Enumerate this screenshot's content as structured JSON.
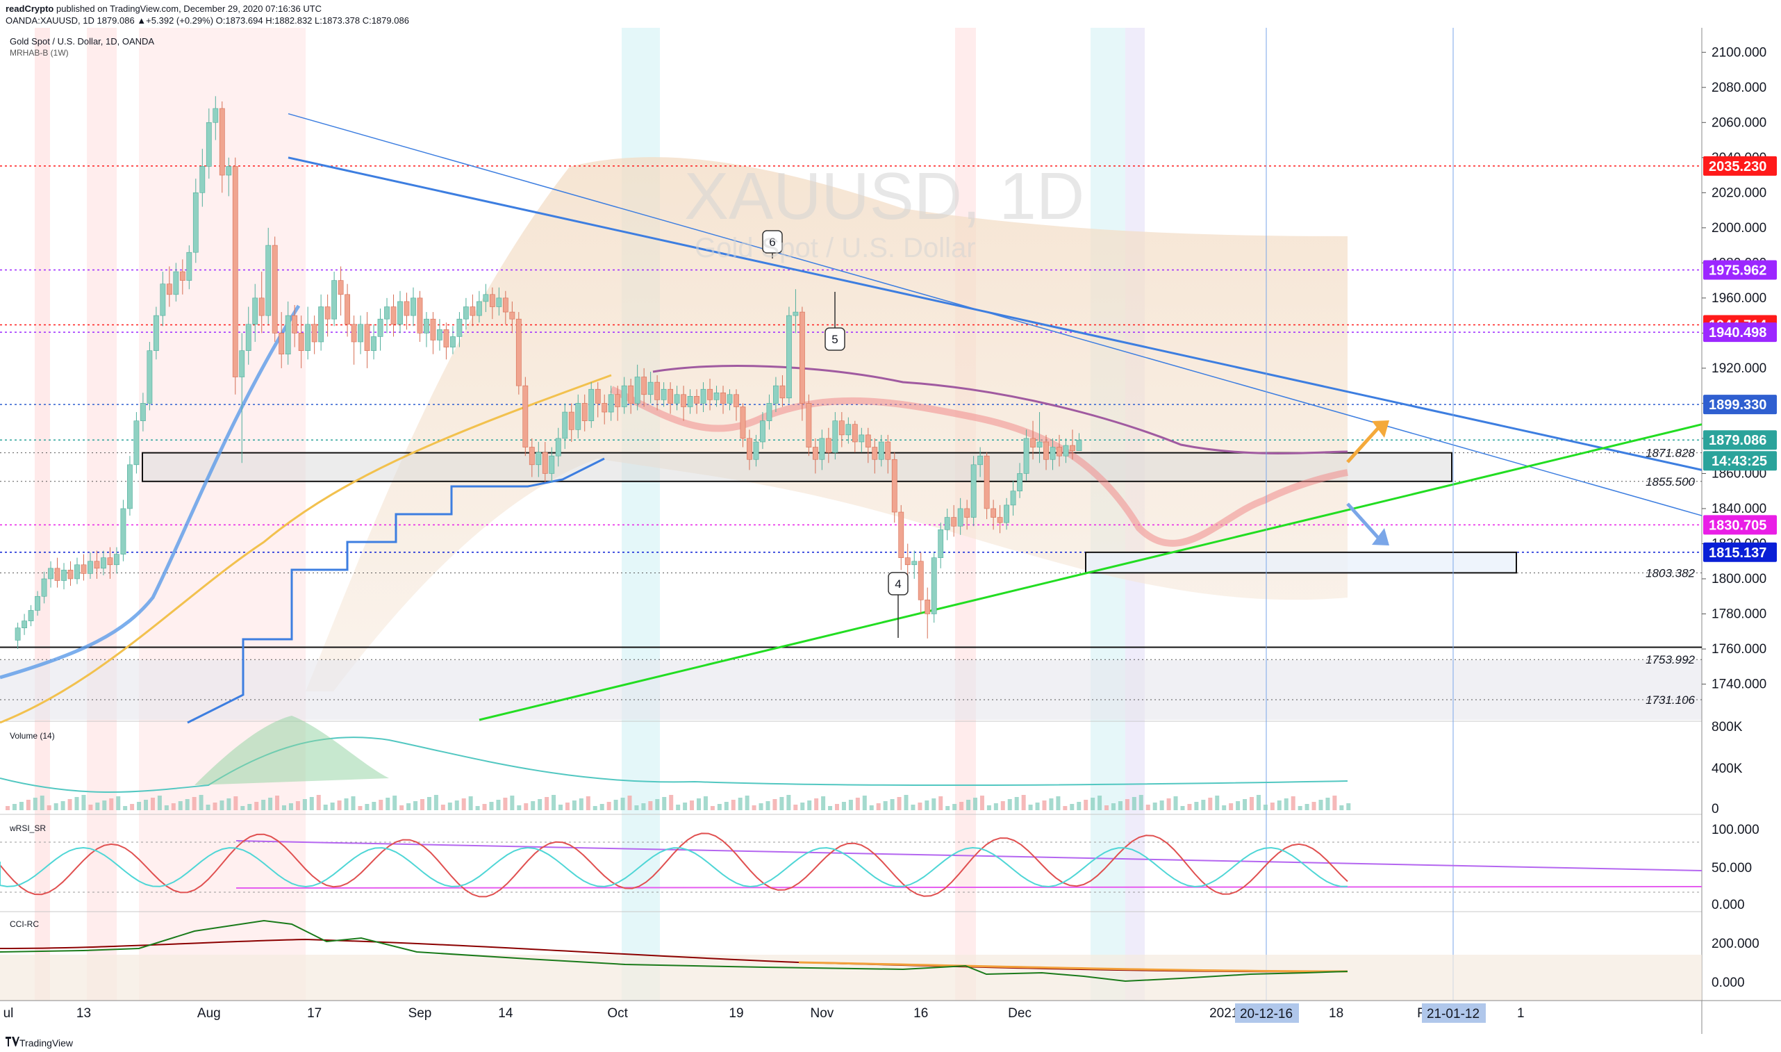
{
  "header": {
    "publisher": "readCrypto",
    "published_text": "published on TradingView.com, December 29, 2020 07:16:36 UTC",
    "ohlc_line": "OANDA:XAUUSD, 1D  1879.086  ▲+5.392 (+0.29%)  O:1873.694  H:1882.832  L:1873.378  C:1879.086"
  },
  "pane_main": {
    "title": "Gold Spot / U.S. Dollar, 1D, OANDA",
    "indicator": "MRHAB-B (1W)",
    "watermark_symbol": "XAUUSD, 1D",
    "watermark_name": "Gold Spot / U.S. Dollar"
  },
  "pane_volume": {
    "label": "Volume (14)"
  },
  "pane_rsi": {
    "label": "wRSI_SR"
  },
  "pane_cci": {
    "label": "CCI-RC"
  },
  "footer": {
    "brand": "TradingView"
  },
  "colors": {
    "up_candle": "#8fd1c2",
    "down_candle": "#f0a590",
    "triangle_line": "#3d7ee0",
    "support_line": "#22dd22",
    "red_level": "#ff0000",
    "purple_level": "#9c27ff",
    "blue_level": "#0a1fd6",
    "magenta_level": "#e91ee6",
    "current_price": "#2ba39b",
    "timer": "#2ba39b"
  },
  "chart_data": {
    "type": "candlestick",
    "symbol": "OANDA:XAUUSD",
    "timeframe": "1D",
    "ylim": [
      1722,
      2110
    ],
    "y_ticks": [
      1740,
      1760,
      1780,
      1800,
      1820,
      1840,
      1860,
      1880,
      1900,
      1920,
      1940,
      1960,
      1980,
      2000,
      2020,
      2040,
      2060,
      2080,
      2100
    ],
    "y_tick_labels": [
      "1740.000",
      "1760.000",
      "1780.000",
      "1800.000",
      "1820.000",
      "1840.000",
      "1860.000",
      "1880.000",
      "1900.000",
      "1920.000",
      "1940.000",
      "1960.000",
      "1980.000",
      "2000.000",
      "2020.000",
      "2040.000",
      "2060.000",
      "2080.000",
      "2100.000"
    ],
    "x_ticks": [
      {
        "label": "ul",
        "day": -2
      },
      {
        "label": "13",
        "day": 11
      },
      {
        "label": "Aug",
        "day": 30
      },
      {
        "label": "17",
        "day": 46
      },
      {
        "label": "Sep",
        "day": 62
      },
      {
        "label": "14",
        "day": 75
      },
      {
        "label": "Oct",
        "day": 92
      },
      {
        "label": "19",
        "day": 110
      },
      {
        "label": "Nov",
        "day": 123
      },
      {
        "label": "16",
        "day": 138
      },
      {
        "label": "Dec",
        "day": 153
      },
      {
        "label": "2021",
        "day": 184
      },
      {
        "label": "18",
        "day": 201
      },
      {
        "label": "Feb",
        "day": 215
      },
      {
        "label": "1",
        "day": 229
      }
    ],
    "x_highlight_labels": [
      {
        "label": "20-12-16",
        "day": 168
      },
      {
        "label": "21-01-12",
        "day": 195
      }
    ],
    "price_levels": [
      {
        "value": 2035.23,
        "label": "2035.230",
        "kind": "red"
      },
      {
        "value": 1975.962,
        "label": "1975.962",
        "kind": "purple"
      },
      {
        "value": 1944.714,
        "label": "1944.714",
        "kind": "red"
      },
      {
        "value": 1940.498,
        "label": "1940.498",
        "kind": "purple"
      },
      {
        "value": 1899.33,
        "label": "1899.330",
        "kind": "blue_dotted"
      },
      {
        "value": 1879.086,
        "label": "1879.086",
        "kind": "current"
      },
      {
        "value": 1830.705,
        "label": "1830.705",
        "kind": "magenta"
      },
      {
        "value": 1815.137,
        "label": "1815.137",
        "kind": "blue"
      }
    ],
    "countdown": "14:43:25",
    "level_text_labels": [
      {
        "value": 1871.828,
        "label": "1871.828"
      },
      {
        "value": 1855.5,
        "label": "1855.500"
      },
      {
        "value": 1803.382,
        "label": "1803.382"
      },
      {
        "value": 1753.992,
        "label": "1753.992"
      },
      {
        "value": 1731.106,
        "label": "1731.106"
      }
    ],
    "annotations": [
      {
        "text": "6",
        "day": 104,
        "price": 2000
      },
      {
        "text": "5",
        "day": 112,
        "price": 1945
      },
      {
        "text": "4",
        "day": 120,
        "price": 1806
      }
    ],
    "candles": [
      [
        1,
        1765,
        1772,
        1760,
        1775
      ],
      [
        2,
        1772,
        1776,
        1768,
        1780
      ],
      [
        3,
        1776,
        1782,
        1773,
        1785
      ],
      [
        4,
        1782,
        1790,
        1779,
        1793
      ],
      [
        5,
        1790,
        1800,
        1786,
        1804
      ],
      [
        6,
        1800,
        1806,
        1795,
        1810
      ],
      [
        7,
        1806,
        1799,
        1795,
        1812
      ],
      [
        8,
        1799,
        1805,
        1794,
        1809
      ],
      [
        9,
        1805,
        1800,
        1796,
        1810
      ],
      [
        10,
        1800,
        1808,
        1797,
        1812
      ],
      [
        11,
        1808,
        1803,
        1799,
        1814
      ],
      [
        12,
        1803,
        1810,
        1800,
        1815
      ],
      [
        13,
        1810,
        1806,
        1800,
        1816
      ],
      [
        14,
        1806,
        1812,
        1802,
        1816
      ],
      [
        15,
        1812,
        1808,
        1800,
        1818
      ],
      [
        16,
        1808,
        1814,
        1803,
        1818
      ],
      [
        17,
        1814,
        1840,
        1810,
        1845
      ],
      [
        18,
        1840,
        1865,
        1836,
        1870
      ],
      [
        19,
        1865,
        1890,
        1860,
        1895
      ],
      [
        20,
        1890,
        1900,
        1884,
        1906
      ],
      [
        21,
        1900,
        1930,
        1896,
        1935
      ],
      [
        22,
        1930,
        1950,
        1925,
        1955
      ],
      [
        23,
        1950,
        1968,
        1944,
        1975
      ],
      [
        24,
        1968,
        1962,
        1955,
        1978
      ],
      [
        25,
        1962,
        1975,
        1958,
        1980
      ],
      [
        26,
        1975,
        1970,
        1962,
        1982
      ],
      [
        27,
        1970,
        1986,
        1965,
        1990
      ],
      [
        28,
        1986,
        2020,
        1980,
        2028
      ],
      [
        29,
        2020,
        2035,
        2012,
        2045
      ],
      [
        30,
        2035,
        2060,
        2028,
        2068
      ],
      [
        31,
        2060,
        2068,
        2050,
        2075
      ],
      [
        32,
        2068,
        2030,
        2020,
        2072
      ],
      [
        33,
        2030,
        2035,
        2018,
        2040
      ],
      [
        34,
        2035,
        1915,
        1905,
        2040
      ],
      [
        35,
        1915,
        1930,
        1866,
        1940
      ],
      [
        36,
        1930,
        1945,
        1922,
        1955
      ],
      [
        37,
        1945,
        1960,
        1935,
        1968
      ],
      [
        38,
        1960,
        1950,
        1940,
        1975
      ],
      [
        39,
        1950,
        1990,
        1945,
        2000
      ],
      [
        40,
        1990,
        1940,
        1935,
        1995
      ],
      [
        41,
        1940,
        1928,
        1920,
        1952
      ],
      [
        42,
        1928,
        1950,
        1922,
        1958
      ],
      [
        43,
        1950,
        1940,
        1932,
        1956
      ],
      [
        44,
        1940,
        1930,
        1920,
        1950
      ],
      [
        45,
        1930,
        1945,
        1925,
        1955
      ],
      [
        46,
        1945,
        1935,
        1928,
        1950
      ],
      [
        47,
        1935,
        1955,
        1930,
        1962
      ],
      [
        48,
        1955,
        1948,
        1938,
        1962
      ],
      [
        49,
        1948,
        1970,
        1944,
        1975
      ],
      [
        50,
        1970,
        1962,
        1950,
        1978
      ],
      [
        51,
        1962,
        1945,
        1938,
        1968
      ],
      [
        52,
        1945,
        1935,
        1922,
        1950
      ],
      [
        53,
        1935,
        1945,
        1928,
        1950
      ],
      [
        54,
        1945,
        1930,
        1920,
        1952
      ],
      [
        55,
        1930,
        1938,
        1925,
        1945
      ],
      [
        56,
        1938,
        1948,
        1930,
        1954
      ],
      [
        57,
        1948,
        1955,
        1940,
        1960
      ],
      [
        58,
        1955,
        1945,
        1938,
        1962
      ],
      [
        59,
        1945,
        1958,
        1940,
        1964
      ],
      [
        60,
        1958,
        1950,
        1942,
        1963
      ],
      [
        61,
        1950,
        1960,
        1944,
        1966
      ],
      [
        62,
        1960,
        1940,
        1935,
        1964
      ],
      [
        63,
        1940,
        1948,
        1932,
        1952
      ],
      [
        64,
        1948,
        1936,
        1928,
        1952
      ],
      [
        65,
        1936,
        1942,
        1930,
        1948
      ],
      [
        66,
        1942,
        1932,
        1925,
        1946
      ],
      [
        67,
        1932,
        1938,
        1928,
        1944
      ],
      [
        68,
        1938,
        1948,
        1932,
        1952
      ],
      [
        69,
        1948,
        1955,
        1942,
        1960
      ],
      [
        70,
        1955,
        1950,
        1944,
        1962
      ],
      [
        71,
        1950,
        1958,
        1946,
        1964
      ],
      [
        72,
        1958,
        1962,
        1952,
        1968
      ],
      [
        73,
        1962,
        1955,
        1948,
        1966
      ],
      [
        74,
        1955,
        1960,
        1950,
        1966
      ],
      [
        75,
        1960,
        1952,
        1945,
        1964
      ],
      [
        76,
        1952,
        1948,
        1940,
        1958
      ],
      [
        77,
        1948,
        1910,
        1905,
        1952
      ],
      [
        78,
        1910,
        1875,
        1870,
        1915
      ],
      [
        79,
        1875,
        1865,
        1858,
        1880
      ],
      [
        80,
        1865,
        1872,
        1858,
        1878
      ],
      [
        81,
        1872,
        1860,
        1855,
        1878
      ],
      [
        82,
        1860,
        1870,
        1855,
        1875
      ],
      [
        83,
        1870,
        1880,
        1864,
        1886
      ],
      [
        84,
        1880,
        1895,
        1874,
        1900
      ],
      [
        85,
        1895,
        1885,
        1878,
        1900
      ],
      [
        86,
        1885,
        1900,
        1880,
        1905
      ],
      [
        87,
        1900,
        1890,
        1884,
        1905
      ],
      [
        88,
        1890,
        1908,
        1886,
        1912
      ],
      [
        89,
        1908,
        1900,
        1892,
        1912
      ],
      [
        90,
        1900,
        1895,
        1888,
        1905
      ],
      [
        91,
        1895,
        1905,
        1890,
        1910
      ],
      [
        92,
        1905,
        1898,
        1890,
        1910
      ],
      [
        93,
        1898,
        1910,
        1894,
        1915
      ],
      [
        94,
        1910,
        1900,
        1894,
        1914
      ],
      [
        95,
        1900,
        1915,
        1896,
        1922
      ],
      [
        96,
        1915,
        1905,
        1898,
        1920
      ],
      [
        97,
        1905,
        1912,
        1900,
        1918
      ],
      [
        98,
        1912,
        1902,
        1896,
        1916
      ],
      [
        99,
        1902,
        1908,
        1898,
        1912
      ],
      [
        100,
        1908,
        1900,
        1894,
        1912
      ],
      [
        101,
        1900,
        1905,
        1896,
        1910
      ],
      [
        102,
        1905,
        1898,
        1890,
        1910
      ],
      [
        103,
        1898,
        1904,
        1894,
        1908
      ],
      [
        104,
        1904,
        1900,
        1894,
        1908
      ],
      [
        105,
        1900,
        1908,
        1895,
        1912
      ],
      [
        106,
        1908,
        1902,
        1896,
        1914
      ],
      [
        107,
        1902,
        1906,
        1898,
        1910
      ],
      [
        108,
        1906,
        1900,
        1894,
        1910
      ],
      [
        109,
        1900,
        1905,
        1896,
        1908
      ],
      [
        110,
        1905,
        1898,
        1890,
        1908
      ],
      [
        111,
        1898,
        1880,
        1875,
        1900
      ],
      [
        112,
        1880,
        1868,
        1862,
        1885
      ],
      [
        113,
        1868,
        1878,
        1864,
        1882
      ],
      [
        114,
        1878,
        1890,
        1874,
        1895
      ],
      [
        115,
        1890,
        1900,
        1885,
        1905
      ],
      [
        116,
        1900,
        1910,
        1895,
        1915
      ],
      [
        117,
        1910,
        1903,
        1898,
        1916
      ],
      [
        118,
        1903,
        1950,
        1900,
        1955
      ],
      [
        119,
        1950,
        1952,
        1940,
        1965
      ],
      [
        120,
        1952,
        1900,
        1890,
        1955
      ],
      [
        121,
        1900,
        1875,
        1870,
        1905
      ],
      [
        122,
        1875,
        1868,
        1860,
        1880
      ],
      [
        123,
        1868,
        1880,
        1862,
        1885
      ],
      [
        124,
        1880,
        1872,
        1866,
        1886
      ],
      [
        125,
        1872,
        1890,
        1868,
        1895
      ],
      [
        126,
        1890,
        1882,
        1875,
        1895
      ],
      [
        127,
        1882,
        1888,
        1877,
        1892
      ],
      [
        128,
        1888,
        1878,
        1872,
        1890
      ],
      [
        129,
        1878,
        1882,
        1872,
        1886
      ],
      [
        130,
        1882,
        1875,
        1866,
        1886
      ],
      [
        131,
        1875,
        1868,
        1860,
        1880
      ],
      [
        132,
        1868,
        1878,
        1864,
        1882
      ],
      [
        133,
        1878,
        1868,
        1860,
        1882
      ],
      [
        134,
        1868,
        1838,
        1832,
        1872
      ],
      [
        135,
        1838,
        1812,
        1805,
        1842
      ],
      [
        136,
        1812,
        1808,
        1800,
        1820
      ],
      [
        137,
        1808,
        1810,
        1800,
        1816
      ],
      [
        138,
        1810,
        1788,
        1780,
        1815
      ],
      [
        139,
        1788,
        1780,
        1766,
        1795
      ],
      [
        140,
        1780,
        1812,
        1775,
        1815
      ],
      [
        141,
        1812,
        1828,
        1806,
        1832
      ],
      [
        142,
        1828,
        1835,
        1822,
        1840
      ],
      [
        143,
        1835,
        1830,
        1824,
        1842
      ],
      [
        144,
        1830,
        1840,
        1825,
        1846
      ],
      [
        145,
        1840,
        1835,
        1828,
        1845
      ],
      [
        146,
        1835,
        1865,
        1830,
        1870
      ],
      [
        147,
        1865,
        1870,
        1858,
        1875
      ],
      [
        148,
        1870,
        1840,
        1834,
        1872
      ],
      [
        149,
        1840,
        1835,
        1828,
        1845
      ],
      [
        150,
        1835,
        1832,
        1826,
        1842
      ],
      [
        151,
        1832,
        1842,
        1828,
        1846
      ],
      [
        152,
        1842,
        1850,
        1836,
        1856
      ],
      [
        153,
        1850,
        1860,
        1846,
        1866
      ],
      [
        154,
        1860,
        1880,
        1856,
        1885
      ],
      [
        155,
        1880,
        1875,
        1868,
        1890
      ],
      [
        156,
        1875,
        1878,
        1866,
        1895
      ],
      [
        157,
        1878,
        1868,
        1862,
        1882
      ],
      [
        158,
        1868,
        1875,
        1862,
        1880
      ],
      [
        159,
        1875,
        1870,
        1864,
        1882
      ],
      [
        160,
        1870,
        1876,
        1866,
        1880
      ],
      [
        161,
        1876,
        1873,
        1868,
        1885
      ],
      [
        162,
        1873,
        1879,
        1873,
        1883
      ]
    ]
  }
}
